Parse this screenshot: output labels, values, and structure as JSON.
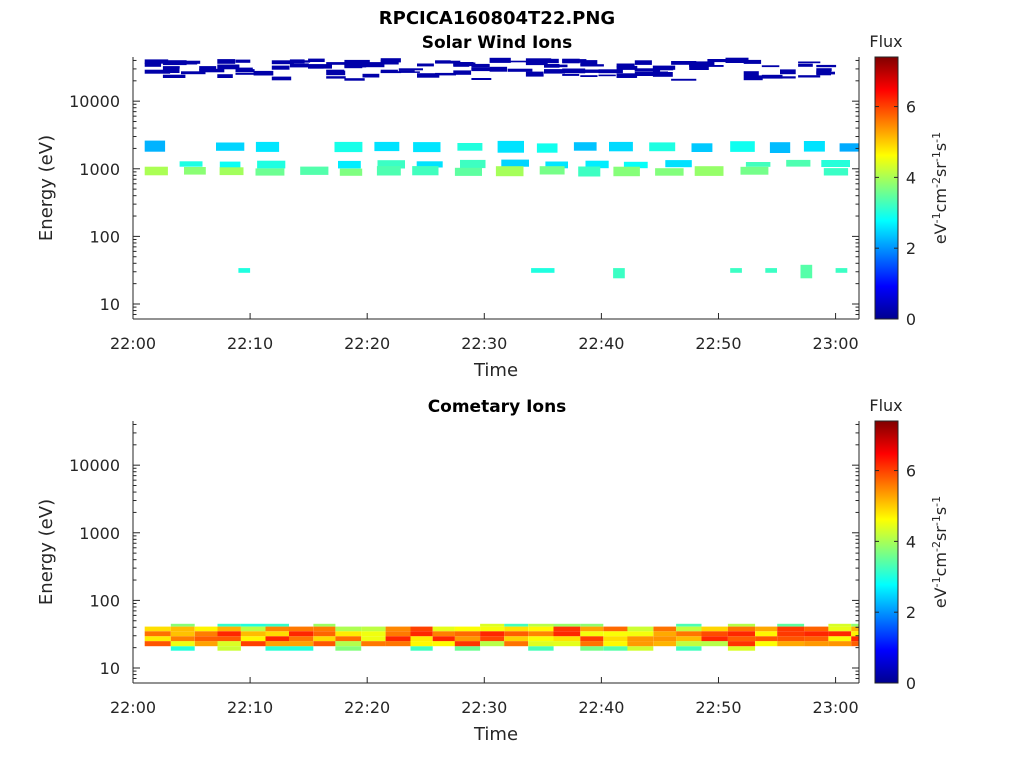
{
  "figure": {
    "title": "RPCICA160804T22.PNG"
  },
  "chart_data": [
    {
      "type": "heatmap",
      "title": "Solar Wind Ions",
      "xlabel": "Time",
      "ylabel": "Energy (eV)",
      "yscale": "log",
      "ylim": [
        6,
        45000
      ],
      "xlim": [
        "22:00",
        "23:02"
      ],
      "xticks": [
        "22:00",
        "22:10",
        "22:20",
        "22:30",
        "22:40",
        "22:50",
        "23:00"
      ],
      "yticks": [
        "10",
        "100",
        "1000",
        "10000"
      ],
      "colorbar": {
        "label": "Flux",
        "units": "eV^-1 cm^-2 sr^-1 s^-1",
        "min": 0,
        "max": 7.4,
        "ticks": [
          "0",
          "2",
          "4",
          "6"
        ]
      },
      "cells": [
        {
          "t0": "22:01",
          "t1": "22:59",
          "e0": 20000,
          "e1": 38000,
          "flux": 0.3,
          "pattern": "scattered-high-energy"
        },
        {
          "t0": "22:01",
          "t1": "23:02",
          "e0": 1800,
          "e1": 2500,
          "flux": 2.6
        },
        {
          "t0": "22:01",
          "t1": "23:02",
          "e0": 1050,
          "e1": 1300,
          "flux": 2.9
        },
        {
          "t0": "22:01",
          "t1": "23:02",
          "e0": 800,
          "e1": 1050,
          "flux": 3.6
        },
        {
          "t0": "22:09",
          "t1": "22:10",
          "e0": 29,
          "e1": 34,
          "flux": 3.0
        },
        {
          "t0": "22:34",
          "t1": "22:36",
          "e0": 29,
          "e1": 34,
          "flux": 3.0
        },
        {
          "t0": "22:41",
          "t1": "22:42",
          "e0": 24,
          "e1": 34,
          "flux": 3.2
        },
        {
          "t0": "22:51",
          "t1": "22:52",
          "e0": 29,
          "e1": 34,
          "flux": 3.2
        },
        {
          "t0": "22:54",
          "t1": "22:55",
          "e0": 29,
          "e1": 34,
          "flux": 3.2
        },
        {
          "t0": "22:57",
          "t1": "22:58",
          "e0": 24,
          "e1": 38,
          "flux": 3.4
        },
        {
          "t0": "23:00",
          "t1": "23:01",
          "e0": 29,
          "e1": 34,
          "flux": 3.2
        }
      ]
    },
    {
      "type": "heatmap",
      "title": "Cometary Ions",
      "xlabel": "Time",
      "ylabel": "Energy (eV)",
      "yscale": "log",
      "ylim": [
        6,
        45000
      ],
      "xlim": [
        "22:00",
        "23:02"
      ],
      "xticks": [
        "22:00",
        "22:10",
        "22:20",
        "22:30",
        "22:40",
        "22:50",
        "23:00"
      ],
      "yticks": [
        "10",
        "100",
        "1000",
        "10000"
      ],
      "colorbar": {
        "label": "Flux",
        "units": "eV^-1 cm^-2 sr^-1 s^-1",
        "min": 0,
        "max": 7.4,
        "ticks": [
          "0",
          "2",
          "4",
          "6"
        ]
      },
      "band": {
        "t0": "22:01",
        "t1": "23:02",
        "e0": 18,
        "e1": 45,
        "flux_min": 3.0,
        "flux_max": 6.2
      }
    }
  ]
}
